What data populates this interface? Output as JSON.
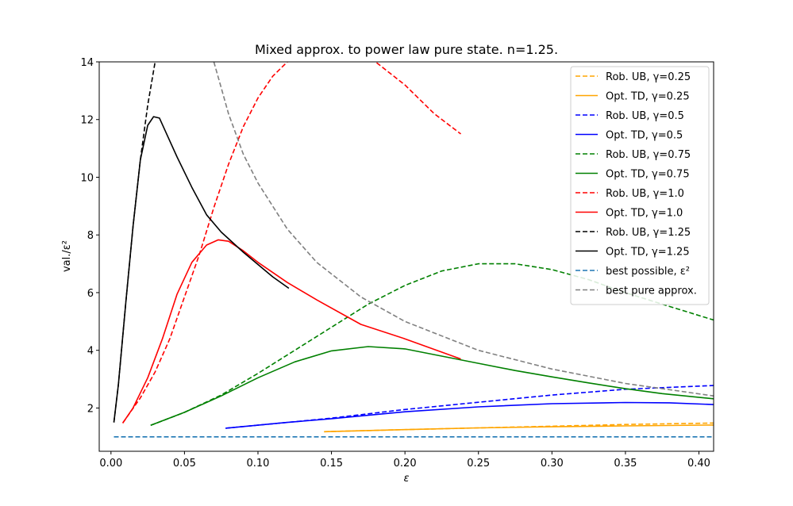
{
  "chart_data": {
    "type": "line",
    "title": "Mixed approx. to power law pure state. n=1.25.",
    "xlabel": "ε",
    "ylabel": "val./ε²",
    "xlim": [
      -0.008,
      0.41
    ],
    "ylim": [
      0.5,
      14
    ],
    "xticks": [
      0.0,
      0.05,
      0.1,
      0.15,
      0.2,
      0.25,
      0.3,
      0.35,
      0.4
    ],
    "xtick_labels": [
      "0.00",
      "0.05",
      "0.10",
      "0.15",
      "0.20",
      "0.25",
      "0.30",
      "0.35",
      "0.40"
    ],
    "yticks": [
      2,
      4,
      6,
      8,
      10,
      12,
      14
    ],
    "ytick_labels": [
      "2",
      "4",
      "6",
      "8",
      "10",
      "12",
      "14"
    ],
    "grid": false,
    "legend_position": "top-right",
    "series": [
      {
        "name": "Rob. UB, γ=0.25",
        "color": "#ffa500",
        "dash": true,
        "x": [
          0.145,
          0.2,
          0.25,
          0.3,
          0.35,
          0.41
        ],
        "y": [
          1.18,
          1.25,
          1.31,
          1.37,
          1.43,
          1.48
        ]
      },
      {
        "name": "Opt. TD, γ=0.25",
        "color": "#ffa500",
        "dash": false,
        "x": [
          0.145,
          0.2,
          0.25,
          0.3,
          0.35,
          0.41
        ],
        "y": [
          1.18,
          1.25,
          1.31,
          1.35,
          1.38,
          1.41
        ]
      },
      {
        "name": "Rob. UB, γ=0.5",
        "color": "#0000ff",
        "dash": true,
        "x": [
          0.078,
          0.12,
          0.15,
          0.2,
          0.25,
          0.3,
          0.35,
          0.41
        ],
        "y": [
          1.3,
          1.5,
          1.65,
          1.95,
          2.2,
          2.45,
          2.65,
          2.78
        ]
      },
      {
        "name": "Opt. TD, γ=0.5",
        "color": "#0000ff",
        "dash": false,
        "x": [
          0.078,
          0.12,
          0.15,
          0.2,
          0.25,
          0.3,
          0.35,
          0.38,
          0.41
        ],
        "y": [
          1.3,
          1.5,
          1.63,
          1.87,
          2.04,
          2.15,
          2.19,
          2.18,
          2.12
        ]
      },
      {
        "name": "Rob. UB, γ=0.75",
        "color": "#008000",
        "dash": true,
        "x": [
          0.027,
          0.05,
          0.075,
          0.1,
          0.125,
          0.15,
          0.175,
          0.2,
          0.225,
          0.25,
          0.275,
          0.3,
          0.325,
          0.35,
          0.375,
          0.41
        ],
        "y": [
          1.4,
          1.85,
          2.45,
          3.2,
          4.0,
          4.8,
          5.6,
          6.25,
          6.75,
          7.0,
          7.0,
          6.8,
          6.45,
          6.0,
          5.6,
          5.05
        ]
      },
      {
        "name": "Opt. TD, γ=0.75",
        "color": "#008000",
        "dash": false,
        "x": [
          0.027,
          0.05,
          0.075,
          0.1,
          0.125,
          0.15,
          0.175,
          0.2,
          0.225,
          0.25,
          0.275,
          0.3,
          0.325,
          0.35,
          0.375,
          0.41
        ],
        "y": [
          1.4,
          1.85,
          2.42,
          3.05,
          3.6,
          3.98,
          4.13,
          4.05,
          3.8,
          3.55,
          3.3,
          3.08,
          2.87,
          2.67,
          2.5,
          2.32
        ]
      },
      {
        "name": "Rob. UB, γ=1.0",
        "color": "#ff0000",
        "dash": true,
        "x": [
          0.008,
          0.02,
          0.03,
          0.04,
          0.05,
          0.06,
          0.07,
          0.08,
          0.09,
          0.1,
          0.11,
          0.12,
          0.13,
          0.15,
          0.18,
          0.2,
          0.22,
          0.238
        ],
        "y": [
          1.48,
          2.35,
          3.25,
          4.4,
          5.85,
          7.3,
          8.95,
          10.45,
          11.75,
          12.75,
          13.5,
          14.0,
          14.5,
          15.2,
          14.0,
          13.2,
          12.2,
          11.5
        ]
      },
      {
        "name": "Opt. TD, γ=1.0",
        "color": "#ff0000",
        "dash": false,
        "x": [
          0.008,
          0.015,
          0.025,
          0.035,
          0.045,
          0.055,
          0.065,
          0.073,
          0.08,
          0.09,
          0.1,
          0.12,
          0.14,
          0.17,
          0.2,
          0.238
        ],
        "y": [
          1.48,
          2.0,
          3.05,
          4.4,
          5.95,
          7.05,
          7.65,
          7.83,
          7.78,
          7.45,
          7.05,
          6.35,
          5.75,
          4.9,
          4.4,
          3.7
        ]
      },
      {
        "name": "Rob. UB, γ=1.25",
        "color": "#000000",
        "dash": true,
        "x": [
          0.002,
          0.005,
          0.01,
          0.015,
          0.02,
          0.025,
          0.03,
          0.035
        ],
        "y": [
          1.5,
          2.8,
          5.6,
          8.3,
          10.6,
          12.5,
          14.0,
          15.5
        ]
      },
      {
        "name": "Opt. TD, γ=1.25",
        "color": "#000000",
        "dash": false,
        "x": [
          0.002,
          0.005,
          0.01,
          0.015,
          0.02,
          0.025,
          0.029,
          0.033,
          0.037,
          0.045,
          0.055,
          0.065,
          0.075,
          0.09,
          0.11,
          0.121
        ],
        "y": [
          1.5,
          2.8,
          5.6,
          8.3,
          10.6,
          11.8,
          12.1,
          12.05,
          11.6,
          10.7,
          9.65,
          8.7,
          8.1,
          7.4,
          6.55,
          6.15
        ]
      },
      {
        "name": "best possible, ε²",
        "color": "#1f77b4",
        "dash": true,
        "x": [
          0.002,
          0.41
        ],
        "y": [
          1.0,
          1.0
        ]
      },
      {
        "name": "best pure approx.",
        "color": "#808080",
        "dash": true,
        "x": [
          0.07,
          0.075,
          0.08,
          0.09,
          0.1,
          0.12,
          0.14,
          0.17,
          0.2,
          0.25,
          0.3,
          0.35,
          0.41
        ],
        "y": [
          14.0,
          13.1,
          12.2,
          10.8,
          9.8,
          8.2,
          7.05,
          5.85,
          5.0,
          4.0,
          3.35,
          2.85,
          2.42
        ]
      }
    ]
  }
}
